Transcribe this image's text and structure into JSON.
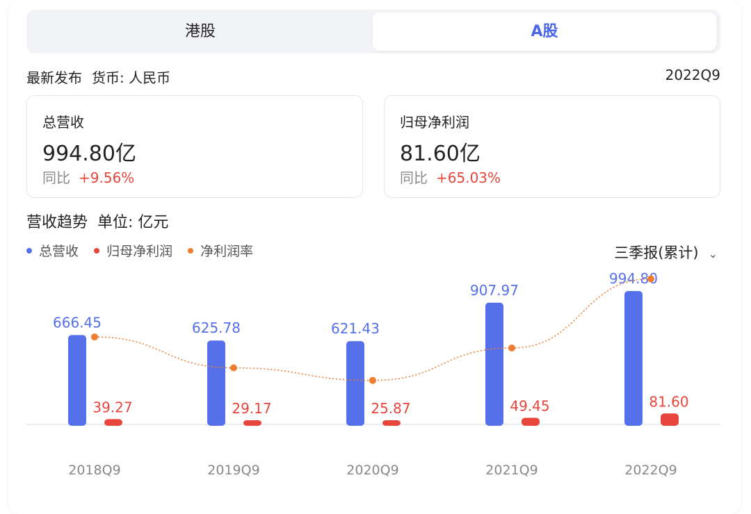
{
  "tabs": [
    {
      "label": "港股",
      "active": false
    },
    {
      "label": "A股",
      "active": true
    }
  ],
  "info": {
    "latest_label": "最新发布",
    "currency_label": "货币: 人民币",
    "period": "2022Q9"
  },
  "metrics": [
    {
      "label": "总营收",
      "value": "994.80亿",
      "yoy_label": "同比",
      "yoy_value": "+9.56%"
    },
    {
      "label": "归母净利润",
      "value": "81.60亿",
      "yoy_label": "同比",
      "yoy_value": "+65.03%"
    }
  ],
  "trend": {
    "title": "营收趋势",
    "unit_label": "单位: 亿元",
    "period_select": "三季报(累计)"
  },
  "legend": [
    {
      "label": "总营收",
      "color": "#5570e8"
    },
    {
      "label": "归母净利润",
      "color": "#e8453c"
    },
    {
      "label": "净利润率",
      "color": "#ef7d32"
    }
  ],
  "chart_data": {
    "type": "bar",
    "categories": [
      "2018Q9",
      "2019Q9",
      "2020Q9",
      "2021Q9",
      "2022Q9"
    ],
    "series": [
      {
        "name": "总营收",
        "type": "bar",
        "values": [
          666.45,
          625.78,
          621.43,
          907.97,
          994.8
        ],
        "labels": [
          "666.45",
          "625.78",
          "621.43",
          "907.97",
          "994.80"
        ],
        "color": "#5570e8"
      },
      {
        "name": "归母净利润",
        "type": "bar",
        "values": [
          39.27,
          29.17,
          25.87,
          49.45,
          81.6
        ],
        "labels": [
          "39.27",
          "29.17",
          "25.87",
          "49.45",
          "81.60"
        ],
        "color": "#e8453c"
      },
      {
        "name": "净利润率",
        "type": "line",
        "values": [
          5.89,
          4.66,
          4.16,
          5.45,
          8.2
        ],
        "color": "#ef7d32",
        "style": "dotted"
      }
    ],
    "grid": false,
    "legend_position": "top-left"
  }
}
